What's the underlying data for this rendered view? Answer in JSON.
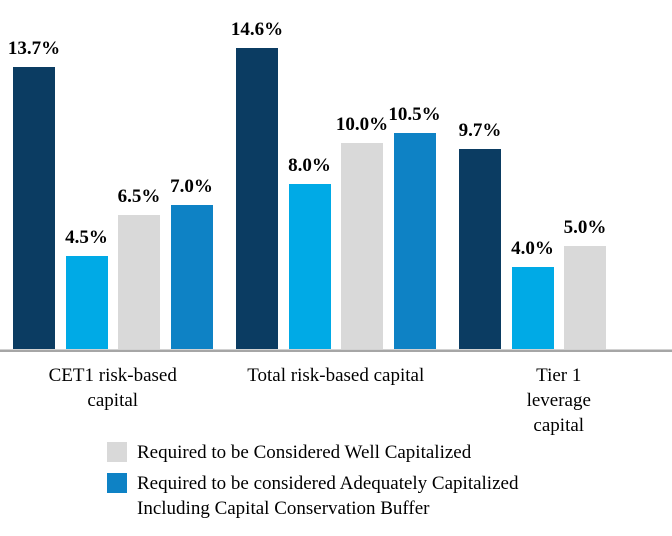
{
  "chart_data": {
    "type": "bar",
    "title": "",
    "xlabel": "",
    "ylabel": "",
    "ylim": [
      0,
      15
    ],
    "grid": false,
    "legend_position": "bottom-left",
    "axis_line_color": "#a6a6a6",
    "categories": [
      "CET1 risk-based capital",
      "Total risk-based capital",
      "Tier 1 leverage capital"
    ],
    "category_label_lines": [
      [
        "CET1 risk-based",
        "capital"
      ],
      [
        "Total risk-based capital"
      ],
      [
        "Tier 1 leverage",
        "capital"
      ]
    ],
    "series": [
      {
        "key": "navy",
        "color": "#0b3c62",
        "values": [
          13.7,
          14.6,
          9.7
        ]
      },
      {
        "key": "cyan",
        "color": "#00aae6",
        "values": [
          4.5,
          8.0,
          4.0
        ]
      },
      {
        "key": "gray",
        "color": "#d9d9d9",
        "values": [
          6.5,
          10.0,
          5.0
        ]
      },
      {
        "key": "blue",
        "color": "#0e82c5",
        "values": [
          7.0,
          10.5,
          null
        ]
      }
    ],
    "value_labels": [
      [
        "13.7%",
        "4.5%",
        "6.5%",
        "7.0%"
      ],
      [
        "14.6%",
        "8.0%",
        "10.0%",
        "10.5%"
      ],
      [
        "9.7%",
        "4.0%",
        "5.0%"
      ]
    ]
  },
  "legend": {
    "items": [
      {
        "swatch_color": "#d9d9d9",
        "label": "Required to be Considered Well Capitalized",
        "label_lines": [
          "Required to be Considered Well Capitalized"
        ]
      },
      {
        "swatch_color": "#0e82c5",
        "label": "Required to be considered Adequately Capitalized Including Capital Conservation Buffer",
        "label_lines": [
          "Required to be considered Adequately Capitalized",
          "Including Capital Conservation Buffer"
        ]
      }
    ]
  }
}
